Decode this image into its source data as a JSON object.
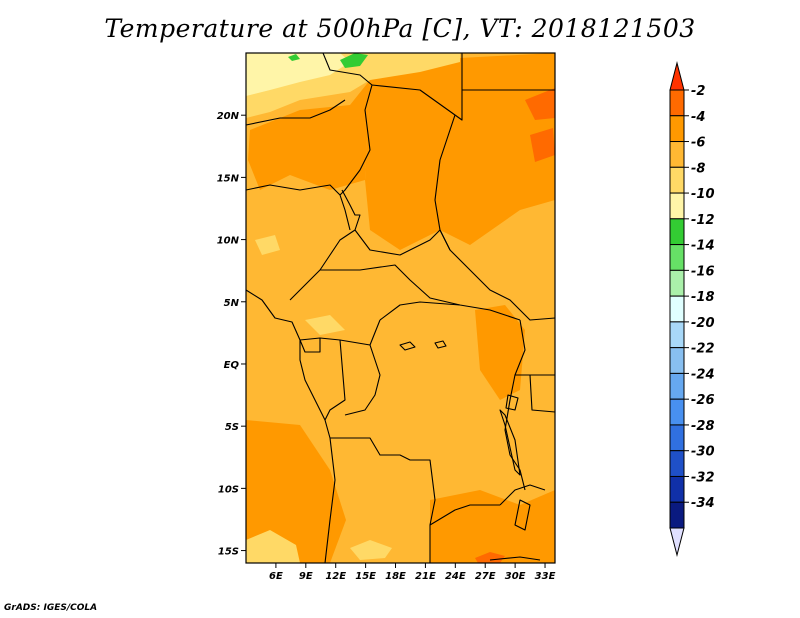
{
  "title": "Temperature at 500hPa [C], VT: 2018121503",
  "credit": "GrADS: IGES/COLA",
  "map": {
    "lon_range": [
      3,
      34
    ],
    "lat_range": [
      -16,
      25
    ],
    "x_ticks": [
      {
        "value": 6,
        "label": "6E"
      },
      {
        "value": 9,
        "label": "9E"
      },
      {
        "value": 12,
        "label": "12E"
      },
      {
        "value": 15,
        "label": "15E"
      },
      {
        "value": 18,
        "label": "18E"
      },
      {
        "value": 21,
        "label": "21E"
      },
      {
        "value": 24,
        "label": "24E"
      },
      {
        "value": 27,
        "label": "27E"
      },
      {
        "value": 30,
        "label": "30E"
      },
      {
        "value": 33,
        "label": "33E"
      }
    ],
    "y_ticks": [
      {
        "value": 20,
        "label": "20N"
      },
      {
        "value": 15,
        "label": "15N"
      },
      {
        "value": 10,
        "label": "10N"
      },
      {
        "value": 5,
        "label": "5N"
      },
      {
        "value": 0,
        "label": "EQ"
      },
      {
        "value": -5,
        "label": "5S"
      },
      {
        "value": -10,
        "label": "10S"
      },
      {
        "value": -15,
        "label": "15S"
      }
    ]
  },
  "colorbar": {
    "colors": [
      "#ff3300",
      "#ff6a00",
      "#ff9900",
      "#ffb833",
      "#ffd966",
      "#fff5a8",
      "#33cc33",
      "#66e066",
      "#aaf0aa",
      "#e0ffff",
      "#a8d8f8",
      "#88bff0",
      "#66a8f0",
      "#4890f0",
      "#3070e0",
      "#1f50c8",
      "#1030a8",
      "#0a1a80",
      "#e0e0ff"
    ],
    "labels": [
      "-2",
      "-4",
      "-6",
      "-8",
      "-10",
      "-12",
      "-14",
      "-16",
      "-18",
      "-20",
      "-22",
      "-24",
      "-26",
      "-28",
      "-30",
      "-32",
      "-34"
    ]
  }
}
